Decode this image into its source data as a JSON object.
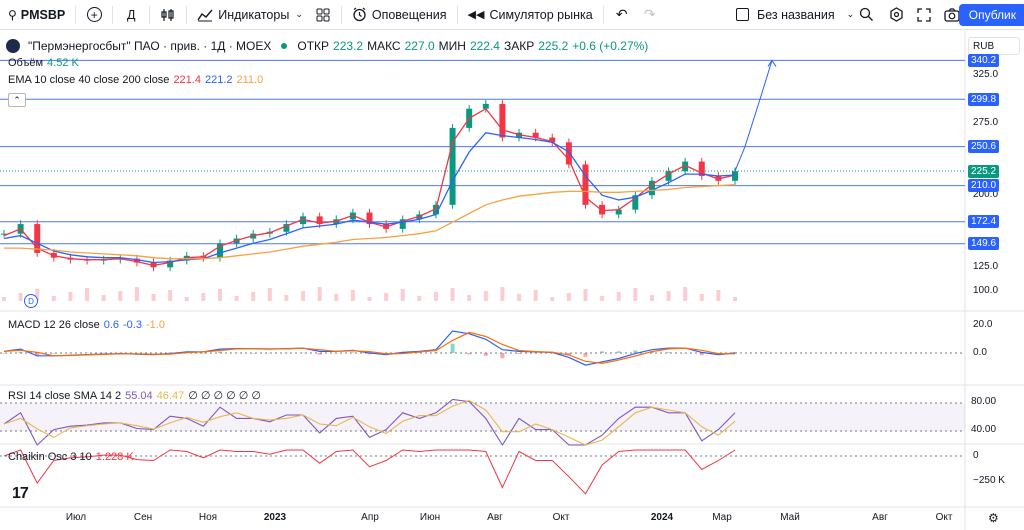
{
  "toolbar": {
    "symbol": "PMSBP",
    "timeframe": "Д",
    "indicators_label": "Индикаторы",
    "alerts_label": "Оповещения",
    "replay_label": "Симулятор рынка",
    "layout_name": "Без названия",
    "publish_label": "Опублик"
  },
  "header": {
    "name": "\"Пермэнергосбыт\" ПАО · прив. · 1Д · MOEX",
    "open_label": "ОТКР",
    "open": "223.2",
    "high_label": "МАКС",
    "high": "227.0",
    "low_label": "МИН",
    "low": "222.4",
    "close_label": "ЗАКР",
    "close": "225.2",
    "change": "+0.6 (+0.27%)",
    "currency": "RUB",
    "volume_label": "Объём",
    "volume": "4.52 K",
    "ema_label": "EMA 10 close 40 close 200 close",
    "ema10": "221.4",
    "ema40": "221.2",
    "ema200": "211.0",
    "d_badge": "D",
    "tv_logo": "17"
  },
  "macd_legend": {
    "label": "MACD 12 26 close",
    "macd": "0.6",
    "signal": "-0.3",
    "hist": "-1.0"
  },
  "rsi_legend": {
    "label": "RSI 14 close SMA 14 2",
    "rsi": "55.04",
    "sma": "46.47",
    "extra": "∅ ∅ ∅ ∅ ∅ ∅"
  },
  "chaikin_legend": {
    "label": "Chaikin Osc 3 10",
    "value": "1.228 K"
  },
  "price_axis": {
    "ticks": [
      "325.0",
      "275.0",
      "200.0",
      "125.0",
      "100.0"
    ],
    "macd_ticks": [
      "20.0",
      "0.0"
    ],
    "rsi_ticks": [
      "80.00",
      "40.00"
    ],
    "chaikin_ticks": [
      "0",
      "−250 K"
    ]
  },
  "price_tags": [
    {
      "label": "340.2",
      "price": 340.2,
      "color": "#2962ff"
    },
    {
      "label": "299.8",
      "price": 299.8,
      "color": "#2962ff"
    },
    {
      "label": "250.6",
      "price": 250.6,
      "color": "#2962ff"
    },
    {
      "label": "225.2",
      "price": 225.2,
      "color": "#089981"
    },
    {
      "label": "210.0",
      "price": 210.0,
      "color": "#2962ff"
    },
    {
      "label": "172.4",
      "price": 172.4,
      "color": "#2962ff"
    },
    {
      "label": "149.6",
      "price": 149.6,
      "color": "#2962ff"
    }
  ],
  "x_axis": [
    {
      "label": "Июл",
      "bold": false
    },
    {
      "label": "Сен",
      "bold": false
    },
    {
      "label": "Ноя",
      "bold": false
    },
    {
      "label": "2023",
      "bold": true
    },
    {
      "label": "Апр",
      "bold": false
    },
    {
      "label": "Июн",
      "bold": false
    },
    {
      "label": "Авг",
      "bold": false
    },
    {
      "label": "Окт",
      "bold": false
    },
    {
      "label": "2024",
      "bold": true
    },
    {
      "label": "Мар",
      "bold": false
    },
    {
      "label": "Май",
      "bold": false
    },
    {
      "label": "Авг",
      "bold": false
    },
    {
      "label": "Окт",
      "bold": false
    }
  ],
  "chart_data": {
    "type": "line",
    "series": [
      {
        "name": "PMSBP close",
        "values": [
          160,
          170,
          140,
          135,
          133,
          132,
          133,
          134,
          130,
          125,
          132,
          137,
          135,
          150,
          155,
          160,
          162,
          170,
          178,
          170,
          175,
          182,
          170,
          165,
          175,
          180,
          190,
          270,
          290,
          295,
          260,
          265,
          260,
          255,
          232,
          190,
          180,
          185,
          200,
          215,
          225,
          235,
          220,
          215,
          225
        ]
      },
      {
        "name": "EMA 10",
        "values": [
          158,
          165,
          145,
          137,
          134,
          133,
          133,
          134,
          131,
          127,
          130,
          135,
          136,
          147,
          153,
          158,
          161,
          168,
          175,
          171,
          173,
          179,
          172,
          167,
          173,
          178,
          186,
          255,
          280,
          290,
          268,
          263,
          260,
          256,
          237,
          198,
          184,
          185,
          197,
          211,
          222,
          231,
          223,
          217,
          221
        ]
      },
      {
        "name": "EMA 40",
        "values": [
          155,
          158,
          150,
          142,
          138,
          136,
          135,
          135,
          133,
          130,
          131,
          133,
          134,
          140,
          145,
          150,
          154,
          160,
          166,
          168,
          170,
          174,
          172,
          170,
          172,
          175,
          180,
          215,
          245,
          265,
          262,
          260,
          258,
          255,
          245,
          220,
          200,
          195,
          198,
          205,
          213,
          222,
          222,
          220,
          221
        ]
      },
      {
        "name": "EMA 200",
        "values": [
          145,
          145,
          144,
          143,
          141,
          140,
          139,
          138,
          137,
          135,
          134,
          134,
          134,
          135,
          137,
          139,
          141,
          144,
          147,
          149,
          151,
          154,
          155,
          156,
          158,
          160,
          163,
          172,
          181,
          190,
          195,
          199,
          201,
          203,
          204,
          204,
          203,
          203,
          204,
          205,
          206,
          208,
          209,
          210,
          211
        ]
      }
    ],
    "levels": [
      340.2,
      299.8,
      250.6,
      210.0,
      172.4,
      149.6
    ],
    "current_price": 225.2,
    "ylim": [
      90,
      350
    ]
  }
}
